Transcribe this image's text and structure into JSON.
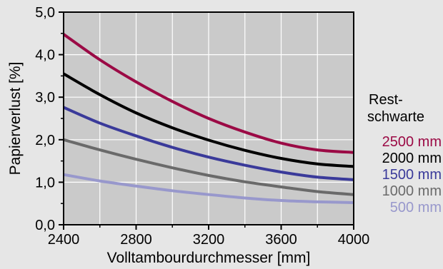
{
  "chart_data": {
    "type": "line",
    "xlabel": "Volltambourdurchmesser [mm]",
    "ylabel": "Papierverlust [%]",
    "xlim": [
      2400,
      4000
    ],
    "ylim": [
      0,
      5
    ],
    "x_ticks": [
      2400,
      2800,
      3200,
      3600,
      4000
    ],
    "x_tick_labels": [
      "2400",
      "2800",
      "3200",
      "3600",
      "4000"
    ],
    "y_ticks": [
      0,
      1,
      2,
      3,
      4,
      5
    ],
    "y_tick_labels": [
      "0,0",
      "1,0",
      "2,0",
      "3,0",
      "4,0",
      "5,0"
    ],
    "grid": true,
    "legend_title": [
      "Rest-",
      "schwarte"
    ],
    "legend_position": "right",
    "x": [
      2400,
      2600,
      2800,
      3000,
      3200,
      3400,
      3600,
      3800,
      4000
    ],
    "series": [
      {
        "name": "2500 mm",
        "color": "#9b0a45",
        "values": [
          4.48,
          3.88,
          3.36,
          2.9,
          2.5,
          2.18,
          1.92,
          1.76,
          1.7
        ]
      },
      {
        "name": "2000 mm",
        "color": "#000000",
        "values": [
          3.55,
          3.06,
          2.63,
          2.28,
          1.99,
          1.75,
          1.56,
          1.43,
          1.37
        ]
      },
      {
        "name": "1500 mm",
        "color": "#3a3a9a",
        "values": [
          2.76,
          2.39,
          2.09,
          1.82,
          1.59,
          1.4,
          1.24,
          1.12,
          1.06
        ]
      },
      {
        "name": "1000 mm",
        "color": "#6a6a6a",
        "values": [
          2.0,
          1.76,
          1.54,
          1.34,
          1.16,
          1.01,
          0.89,
          0.78,
          0.71
        ]
      },
      {
        "name": "500 mm",
        "color": "#9898cc",
        "values": [
          1.18,
          1.03,
          0.91,
          0.8,
          0.71,
          0.63,
          0.57,
          0.54,
          0.52
        ]
      }
    ]
  }
}
